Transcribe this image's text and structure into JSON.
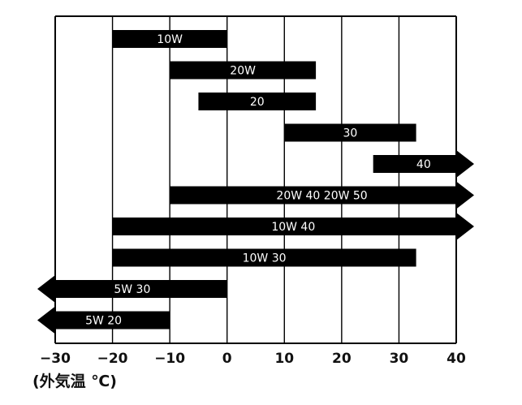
{
  "chart_data": {
    "type": "bar",
    "orientation": "horizontal-range",
    "xlabel": "(外気温 ℃)",
    "xlim": [
      -30,
      40
    ],
    "x_ticks": [
      -30,
      -20,
      -10,
      0,
      10,
      20,
      30,
      40
    ],
    "x_tick_labels": [
      "−30",
      "−20",
      "−10",
      "0",
      "10",
      "20",
      "30",
      "40"
    ],
    "grid": true,
    "series": [
      {
        "label": "10W",
        "start": -20,
        "end": 0,
        "arrow_left": false,
        "arrow_right": false
      },
      {
        "label": "20W",
        "start": -10,
        "end": 15.5,
        "arrow_left": false,
        "arrow_right": false
      },
      {
        "label": "20",
        "start": -5,
        "end": 15.5,
        "arrow_left": false,
        "arrow_right": false
      },
      {
        "label": "30",
        "start": 10,
        "end": 33,
        "arrow_left": false,
        "arrow_right": false
      },
      {
        "label": "40",
        "start": 25.5,
        "end": 40,
        "arrow_left": false,
        "arrow_right": true
      },
      {
        "label": "20W 40  20W 50",
        "start": -10,
        "end": 40,
        "arrow_left": false,
        "arrow_right": true
      },
      {
        "label": "10W 40",
        "start": -20,
        "end": 40,
        "arrow_left": false,
        "arrow_right": true
      },
      {
        "label": "10W 30",
        "start": -20,
        "end": 33,
        "arrow_left": false,
        "arrow_right": false
      },
      {
        "label": "5W 30",
        "start": -30,
        "end": 0,
        "arrow_left": true,
        "arrow_right": false
      },
      {
        "label": "5W 20",
        "start": -30,
        "end": -10,
        "arrow_left": true,
        "arrow_right": false
      }
    ],
    "colors": {
      "bar": "#000000",
      "bar_text": "#ffffff",
      "grid": "#000000"
    }
  }
}
